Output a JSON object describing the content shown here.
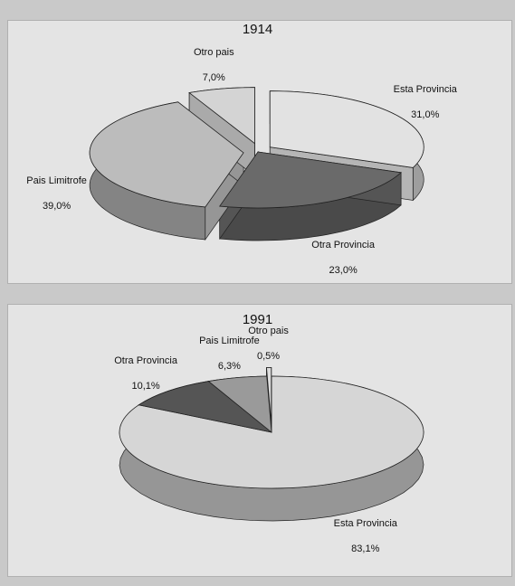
{
  "chart_data": [
    {
      "type": "pie",
      "title": "1914",
      "categories": [
        "Esta Provincia",
        "Otra Provincia",
        "Pais Limitrofe",
        "Otro pais"
      ],
      "values": [
        31.0,
        23.0,
        39.0,
        7.0
      ],
      "value_labels": [
        "31,0%",
        "23,0%",
        "39,0%",
        "7,0%"
      ],
      "colors": [
        "#e2e2e2",
        "#6a6a6a",
        "#bcbcbc",
        "#d4d4d4"
      ],
      "explode": [
        true,
        false,
        true,
        true
      ]
    },
    {
      "type": "pie",
      "title": "1991",
      "categories": [
        "Esta Provincia",
        "Otra Provincia",
        "Pais Limitrofe",
        "Otro pais"
      ],
      "values": [
        83.1,
        10.1,
        6.3,
        0.5
      ],
      "value_labels": [
        "83,1%",
        "10,1%",
        "6,3%",
        "0,5%"
      ],
      "colors": [
        "#d6d6d6",
        "#555555",
        "#9a9a9a",
        "#dddddd"
      ],
      "explode": [
        false,
        false,
        false,
        true
      ]
    }
  ]
}
